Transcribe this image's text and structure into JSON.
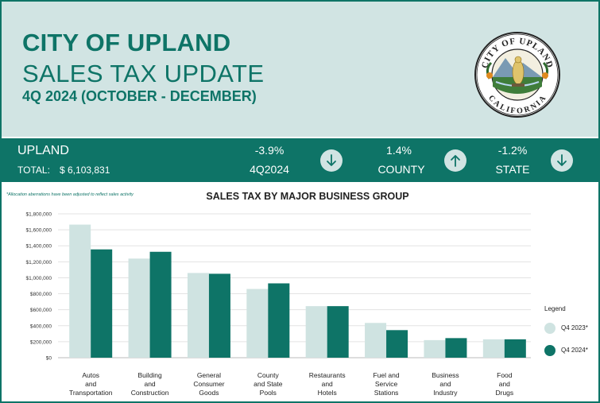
{
  "header": {
    "city_title": "CITY OF UPLAND",
    "subtitle": "SALES TAX UPDATE",
    "period": "4Q 2024 (OCTOBER - DECEMBER)",
    "seal": {
      "icon": "city-seal-icon",
      "top_text": "CITY OF UPLAND",
      "bottom_text": "CALIFORNIA"
    }
  },
  "summary": {
    "city": "UPLAND",
    "total_label": "TOTAL:",
    "total_value": "$ 6,103,831",
    "metrics": [
      {
        "value": "-3.9%",
        "label": "4Q2024",
        "direction": "down",
        "icon": "arrow-down-icon"
      },
      {
        "value": "1.4%",
        "label": "COUNTY",
        "direction": "up",
        "icon": "arrow-up-icon"
      },
      {
        "value": "-1.2%",
        "label": "STATE",
        "direction": "down",
        "icon": "arrow-down-icon"
      }
    ]
  },
  "note": "*Allocation aberrations have been adjusted to reflect sales activity",
  "colors": {
    "brand": "#0e7467",
    "light": "#d1e4e3",
    "series_2023": "#cfe3e1",
    "series_2024": "#0e7467",
    "white": "#ffffff"
  },
  "legend": {
    "title": "Legend",
    "placement": "right"
  },
  "chart_data": {
    "type": "bar",
    "title": "SALES TAX BY MAJOR BUSINESS GROUP",
    "categories": [
      [
        "Autos",
        "and",
        "Transportation"
      ],
      [
        "Building",
        "and",
        "Construction"
      ],
      [
        "General",
        "Consumer",
        "Goods"
      ],
      [
        "County",
        "and State",
        "Pools"
      ],
      [
        "Restaurants",
        "and",
        "Hotels"
      ],
      [
        "Fuel and",
        "Service",
        "Stations"
      ],
      [
        "Business",
        "and",
        "Industry"
      ],
      [
        "Food",
        "and",
        "Drugs"
      ]
    ],
    "series": [
      {
        "name": "Q4 2023*",
        "values": [
          1665000,
          1240000,
          1060000,
          860000,
          645000,
          435000,
          220000,
          230000
        ]
      },
      {
        "name": "Q4 2024*",
        "values": [
          1355000,
          1325000,
          1050000,
          930000,
          645000,
          345000,
          245000,
          230000
        ]
      }
    ],
    "ylim": [
      0,
      1800000
    ],
    "yticks": [
      "$0",
      "$200,000",
      "$400,000",
      "$600,000",
      "$800,000",
      "$1,000,000",
      "$1,200,000",
      "$1,400,000",
      "$1,600,000",
      "$1,800,000"
    ],
    "grid": true
  }
}
